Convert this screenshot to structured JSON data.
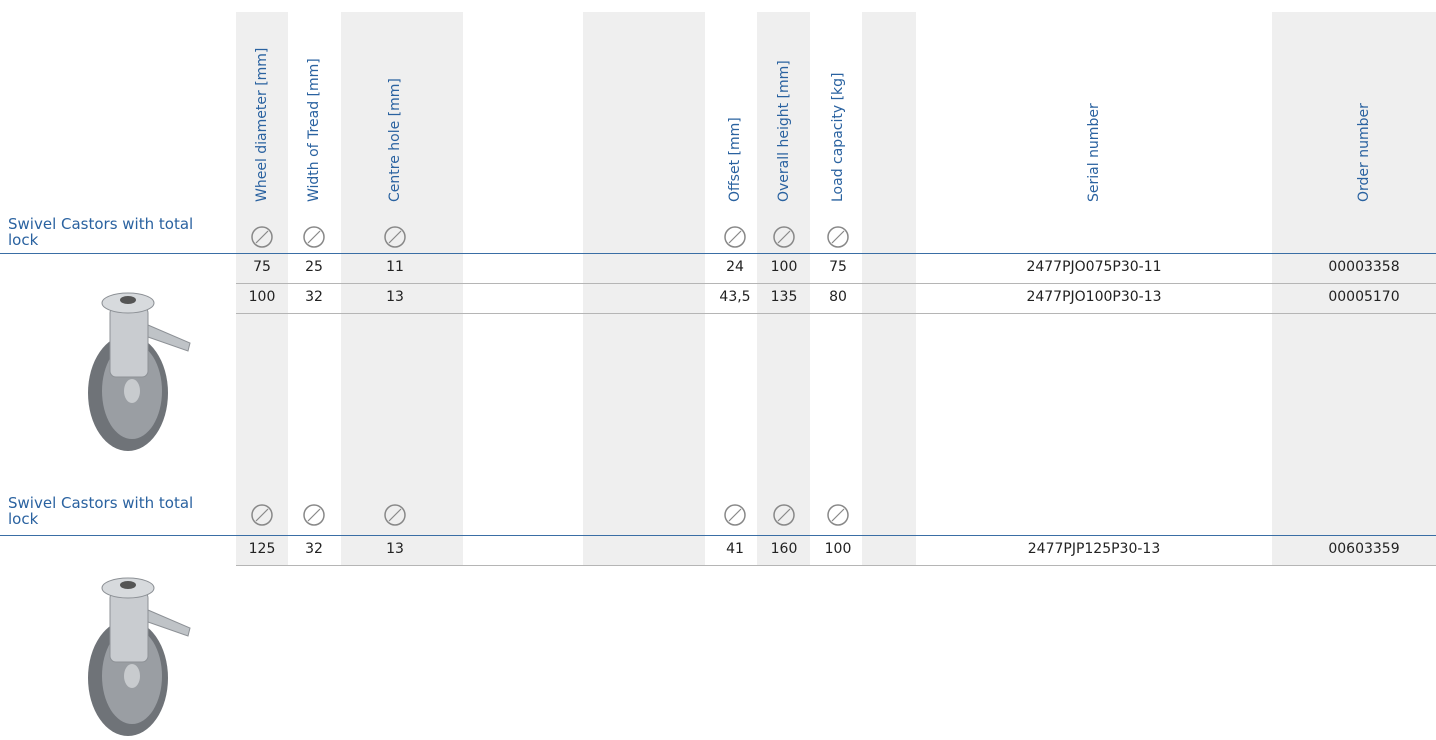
{
  "table": {
    "headers": [
      "Wheel diameter [mm]",
      "Width of Tread [mm]",
      "Centre hole [mm]",
      "Offset [mm]",
      "Overall height [mm]",
      "Load capacity [kg]",
      "Serial number",
      "Order number"
    ],
    "sections": [
      {
        "title": "Swivel Castors with total lock",
        "rows": [
          [
            75,
            25,
            11,
            24,
            100,
            75,
            "2477PJO075P30-11",
            "00003358"
          ],
          [
            100,
            32,
            13,
            "43,5",
            135,
            80,
            "2477PJO100P30-13",
            "00005170"
          ]
        ]
      },
      {
        "title": "Swivel Castors with total lock",
        "rows": [
          [
            125,
            32,
            13,
            41,
            160,
            100,
            "2477PJP125P30-13",
            "00603359"
          ]
        ]
      }
    ]
  }
}
